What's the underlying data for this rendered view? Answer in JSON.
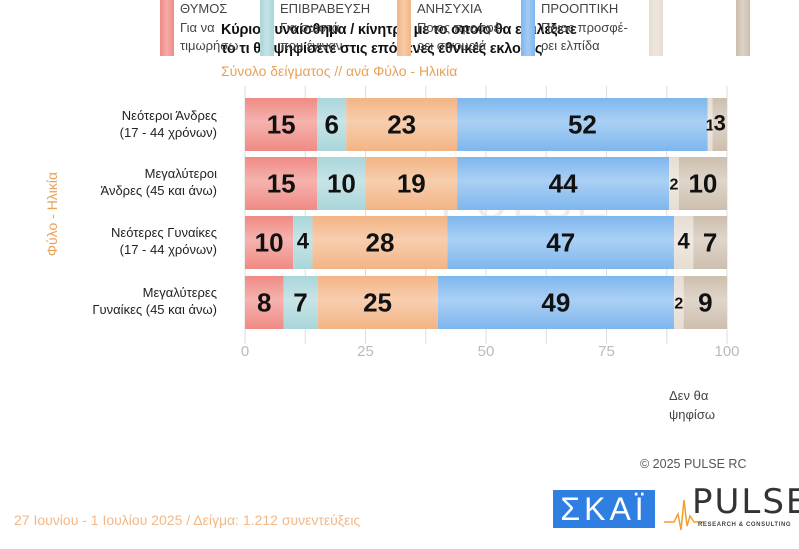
{
  "header": {
    "title_line1": "Κύριο συναίσθημα / κίνητρο με το οποίο θα επιλέξετε",
    "title_line2": "το τι θα ψηφίσετε στις επόμενες εθνικές εκλογές",
    "subtitle": "Σύνολο δείγματος // ανά Φύλο - Ηλικία"
  },
  "chart_data": {
    "type": "bar",
    "orientation": "horizontal",
    "stacked": true,
    "title": "Κύριο συναίσθημα / κίνητρο με το οποίο θα επιλέξετε το τι θα ψηφίσετε στις επόμενες εθνικές εκλογές",
    "subtitle": "Σύνολο δείγματος // ανά Φύλο - Ηλικία",
    "ylabel": "Φύλο - Ηλικία",
    "xlabel": "",
    "xlim": [
      0,
      100
    ],
    "xticks": [
      0,
      25,
      50,
      75,
      100
    ],
    "grid": true,
    "legend_position": "bottom",
    "categories": [
      [
        "Νεότεροι Άνδρες",
        "(17 - 44 χρόνων)"
      ],
      [
        "Μεγαλύτεροι",
        "Άνδρες (45 και άνω)"
      ],
      [
        "Νεότερες Γυναίκες",
        "(17 - 44 χρόνων)"
      ],
      [
        "Μεγαλύτερες",
        "Γυναίκες (45 και άνω)"
      ]
    ],
    "series": [
      {
        "name": "ΘΥΜΟΣ – Για να τιμωρήσω",
        "color": "#f08a84",
        "values": [
          15,
          15,
          10,
          8
        ]
      },
      {
        "name": "ΕΠΙΒΡΑΒΕΥΣΗ – Για σωστά που έγιναν",
        "color": "#a9d6da",
        "values": [
          6,
          10,
          4,
          7
        ]
      },
      {
        "name": "ΑΝΗΣΥΧΙΑ – Ποιος προσφέρει σιγουριά",
        "color": "#f3b484",
        "values": [
          23,
          19,
          28,
          25
        ]
      },
      {
        "name": "ΠΡΟΟΠΤΙΚΗ – Ποιος προσφέρει ελπίδα",
        "color": "#7db6ee",
        "values": [
          52,
          44,
          47,
          49
        ]
      },
      {
        "name": "Δεν θα ψηφίσω (light)",
        "color": "#e6ddd2",
        "values": [
          1,
          2,
          4,
          2
        ]
      },
      {
        "name": "Δεν θα ψηφίσω (dark)",
        "color": "#cdbfae",
        "values": [
          3,
          10,
          7,
          9
        ]
      }
    ]
  },
  "legend": [
    {
      "lines": [
        "ΘΥΜΟΣ",
        "Για να",
        "τιμωρήσω"
      ],
      "color": "#f08a84"
    },
    {
      "lines": [
        "ΕΠΙΒΡΑΒΕΥΣΗ",
        "Για σωστά",
        "που έγιναν"
      ],
      "color": "#a9d6da"
    },
    {
      "lines": [
        "ΑΝΗΣΥΧΙΑ",
        "Ποιος προσφέ-",
        "ρει σιγουριά"
      ],
      "color": "#f3b484"
    },
    {
      "lines": [
        "ΠΡΟΟΠΤΙΚΗ",
        "Ποιος προσφέ-",
        "ρει ελπίδα"
      ],
      "color": "#7db6ee"
    },
    {
      "lines": [
        "Δεν θα",
        "ψηφίσω"
      ],
      "color": "#e6ddd2",
      "color2": "#cdbfae"
    }
  ],
  "copyright": "©  2025  PULSE RC",
  "footer": "27 Ιουνίου - 1 Ιουλίου 2025  /  Δείγμα:  1.212 συνεντεύξεις",
  "logos": {
    "skai": "ΣΚΑΪ",
    "pulse": "PULSE",
    "pulse_sub": "RESEARCH & CONSULTING",
    "watermark": "PULSE"
  }
}
